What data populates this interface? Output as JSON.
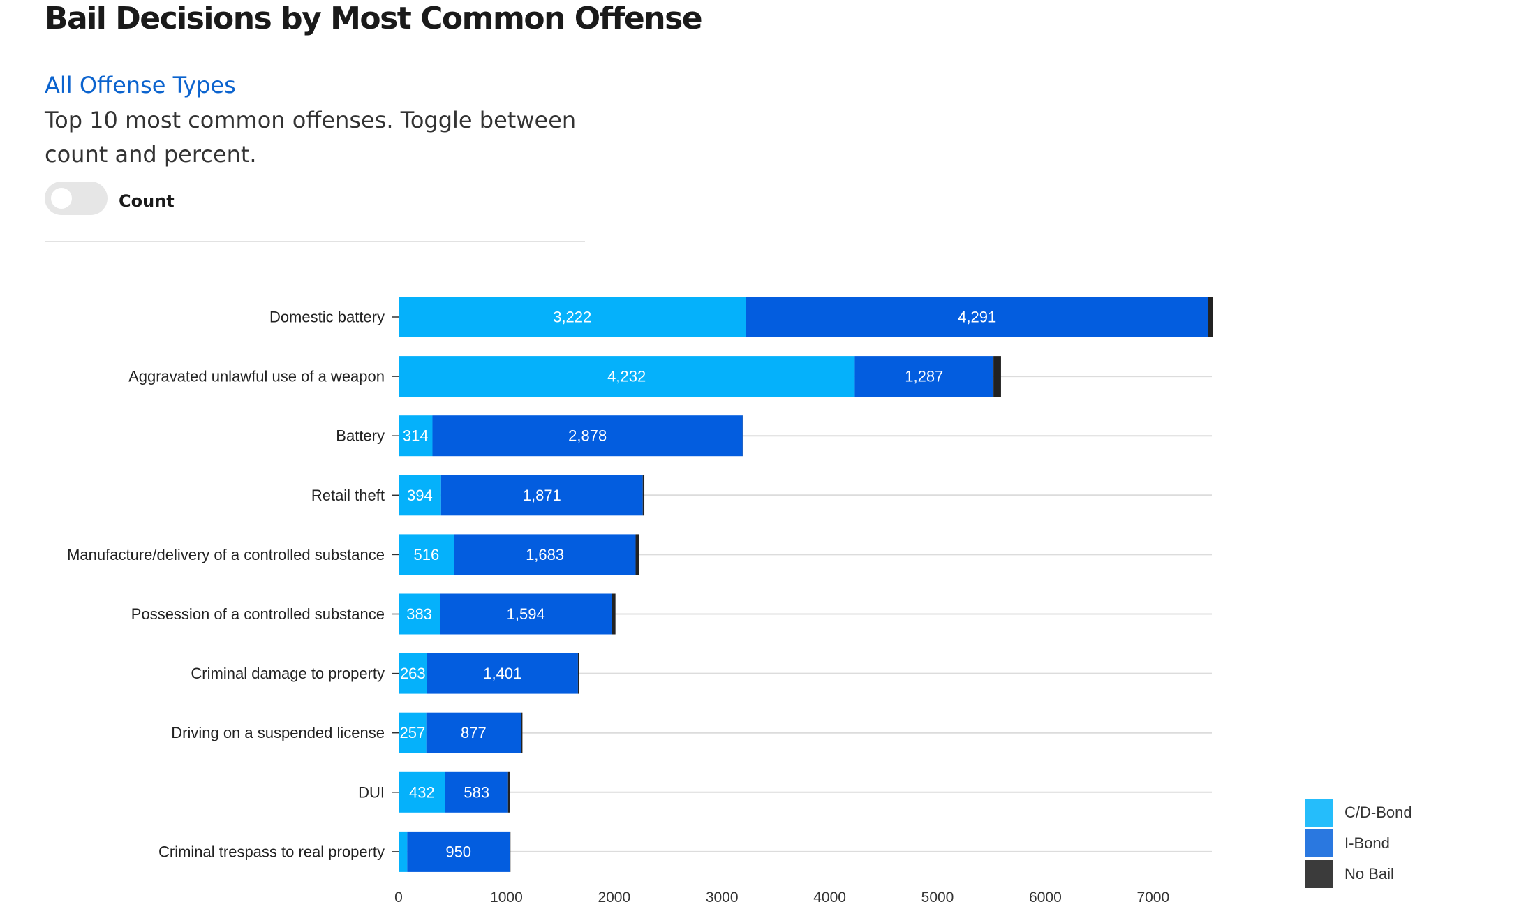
{
  "header": {
    "title": "Bail Decisions by Most Common Offense",
    "link_label": "All Offense Types",
    "description": "Top 10 most common offenses. Toggle between count and percent.",
    "toggle_label": "Count"
  },
  "colors": {
    "cd_bond": "#05b1fb",
    "i_bond": "#035ddf",
    "no_bail": "#222222",
    "legend_cd_bond": "#25bdfb",
    "legend_i_bond": "#2a78e0",
    "legend_no_bail": "#3b3b3b"
  },
  "chart_data": {
    "type": "bar",
    "orientation": "horizontal",
    "stacked": true,
    "title": "Bail Decisions by Most Common Offense",
    "xlim": [
      0,
      7550
    ],
    "x_ticks": [
      0,
      1000,
      2000,
      3000,
      4000,
      5000,
      6000,
      7000
    ],
    "grid": "vertical-category-lines",
    "legend_position": "bottom-right",
    "categories": [
      "Domestic battery",
      "Aggravated unlawful use of a weapon",
      "Battery",
      "Retail theft",
      "Manufacture/delivery of a controlled substance",
      "Possession of a controlled substance",
      "Criminal damage to property",
      "Driving on a suspended license",
      "DUI",
      "Criminal trespass to real property"
    ],
    "series": [
      {
        "name": "C/D-Bond",
        "values": [
          3222,
          4232,
          314,
          394,
          516,
          383,
          263,
          257,
          432,
          80
        ],
        "labels": [
          "3,222",
          "4,232",
          "314",
          "394",
          "516",
          "383",
          "263",
          "257",
          "432",
          ""
        ]
      },
      {
        "name": "I-Bond",
        "values": [
          4291,
          1287,
          2878,
          1871,
          1683,
          1594,
          1401,
          877,
          583,
          950
        ],
        "labels": [
          "4,291",
          "1,287",
          "2,878",
          "1,871",
          "1,683",
          "1,594",
          "1,401",
          "877",
          "583",
          "950"
        ]
      },
      {
        "name": "No Bail",
        "values": [
          40,
          70,
          6,
          15,
          30,
          35,
          8,
          15,
          20,
          8
        ],
        "labels": [
          "",
          "",
          "",
          "",
          "",
          "",
          "",
          "",
          "",
          ""
        ]
      }
    ]
  }
}
